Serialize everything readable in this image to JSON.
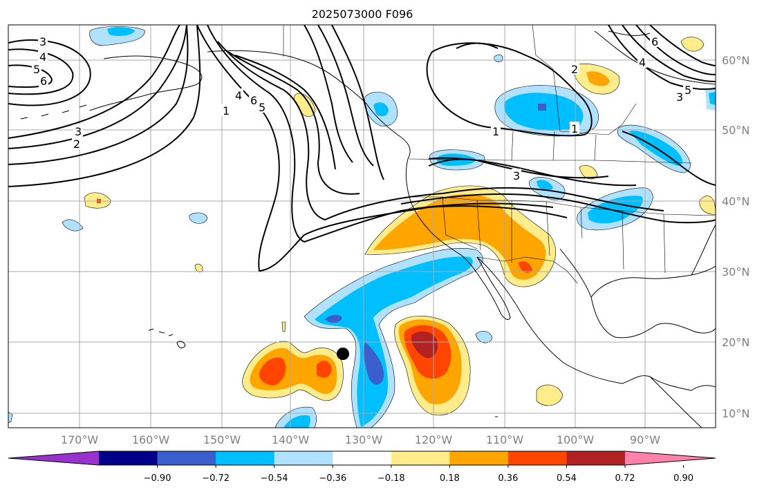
{
  "title": "2025073000 F096",
  "lon_labels": [
    "170°W",
    "160°W",
    "150°W",
    "140°W",
    "130°W",
    "120°W",
    "110°W",
    "100°W",
    "90°W"
  ],
  "lat_labels": [
    "60°N",
    "50°N",
    "40°N",
    "30°N",
    "20°N",
    "10°N"
  ],
  "colorbar": {
    "colors": [
      "#9932cc",
      "#00008b",
      "#3a5fcd",
      "#00bfff",
      "#b0e2ff",
      "#ffffff",
      "#ffec8b",
      "#ffa500",
      "#ff4500",
      "#b22222",
      "#ff82ab"
    ],
    "tick_labels": [
      "−0.90",
      "−0.72",
      "−0.54",
      "−0.36",
      "−0.18",
      "0.18",
      "0.36",
      "0.54",
      "0.72",
      "0.90"
    ]
  },
  "contour_labels": [
    "3",
    "4",
    "5",
    "6",
    "3",
    "2",
    "1",
    "4",
    "6",
    "5",
    "1",
    "3",
    "2",
    "1",
    "6",
    "4",
    "5",
    "3"
  ],
  "marker": {
    "name": "storm-position-marker",
    "color": "#000000"
  }
}
